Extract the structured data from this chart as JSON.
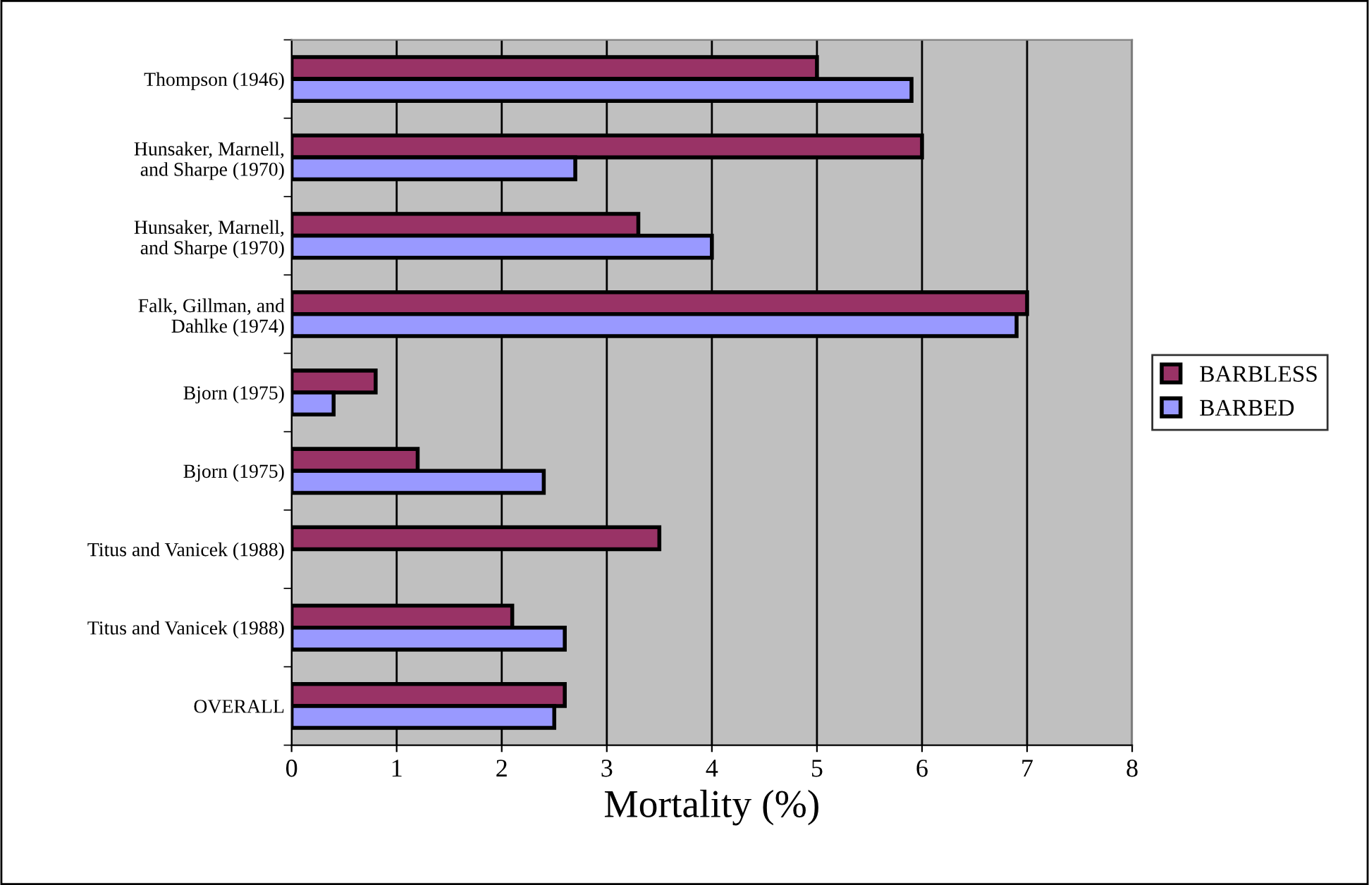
{
  "chart_data": {
    "type": "bar",
    "orientation": "horizontal",
    "xlabel": "Mortality (%)",
    "categories": [
      "Thompson (1946)",
      "Hunsaker, Marnell,\nand Sharpe (1970)",
      "Hunsaker, Marnell,\nand Sharpe (1970)",
      "Falk, Gillman, and\nDahlke (1974)",
      "Bjorn (1975)",
      "Bjorn (1975)",
      "Titus and Vanicek (1988)",
      "Titus and Vanicek (1988)",
      "OVERALL"
    ],
    "series": [
      {
        "name": "BARBLESS",
        "color": "#993366",
        "values": [
          5.0,
          6.0,
          3.3,
          7.0,
          0.8,
          1.2,
          3.5,
          2.1,
          2.6
        ]
      },
      {
        "name": "BARBED",
        "color": "#9999ff",
        "values": [
          5.9,
          2.7,
          4.0,
          6.9,
          0.4,
          2.4,
          null,
          2.6,
          2.5
        ]
      }
    ],
    "xlim": [
      0,
      8
    ],
    "xticks": [
      0,
      1,
      2,
      3,
      4,
      5,
      6,
      7,
      8
    ],
    "grid": "x",
    "legend": "right"
  }
}
